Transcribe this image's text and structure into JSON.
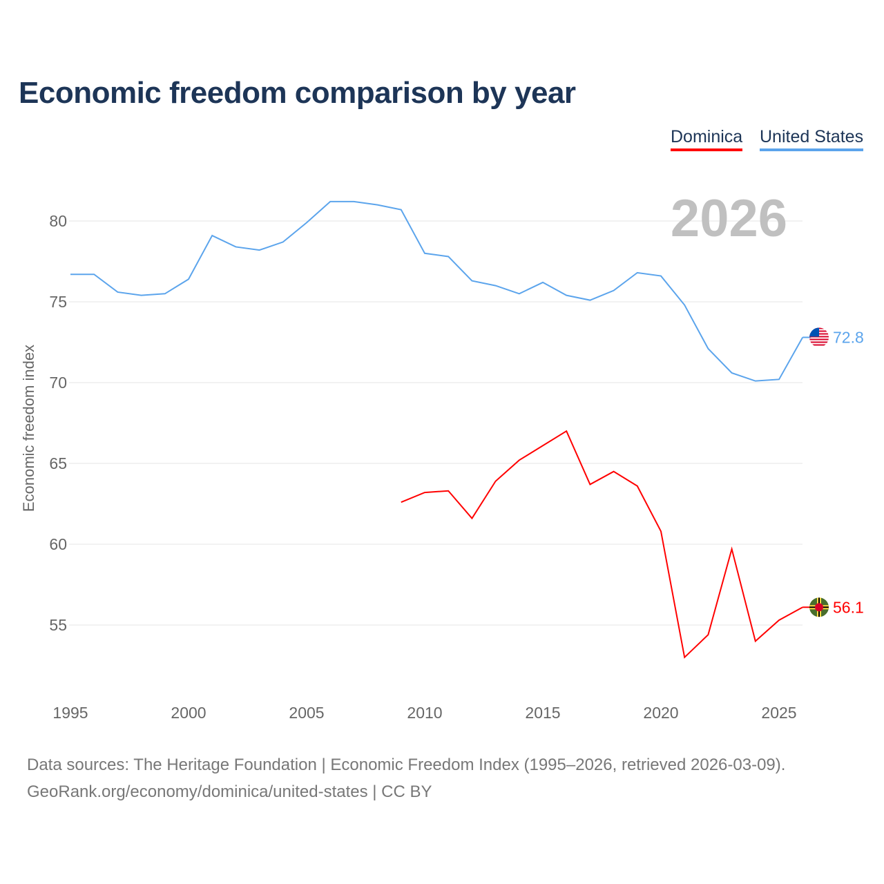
{
  "title": "Economic freedom comparison by year",
  "legend": [
    {
      "label": "Dominica",
      "color": "#ff0000"
    },
    {
      "label": "United States",
      "color": "#5ba4ec"
    }
  ],
  "source_line1": "Data sources: The Heritage Foundation | Economic Freedom Index (1995–2026, retrieved 2026-03-09).",
  "source_line2": "GeoRank.org/economy/dominica/united-states | CC BY",
  "chart_data": {
    "type": "line",
    "title": "Economic freedom comparison by year",
    "xlabel": "",
    "ylabel": "Economic freedom index",
    "year_label": "2026",
    "xlim": [
      1995,
      2026
    ],
    "ylim": [
      51,
      83
    ],
    "xticks": [
      1995,
      2000,
      2005,
      2010,
      2015,
      2020,
      2025
    ],
    "yticks": [
      55,
      60,
      65,
      70,
      75,
      80
    ],
    "grid": true,
    "legend_position": "top-right",
    "series": [
      {
        "name": "United States",
        "color": "#5ba4ec",
        "end_label": "72.8",
        "x": [
          1995,
          1996,
          1997,
          1998,
          1999,
          2000,
          2001,
          2002,
          2003,
          2004,
          2005,
          2006,
          2007,
          2008,
          2009,
          2010,
          2011,
          2012,
          2013,
          2014,
          2015,
          2016,
          2017,
          2018,
          2019,
          2020,
          2021,
          2022,
          2023,
          2024,
          2025,
          2026
        ],
        "values": [
          76.7,
          76.7,
          75.6,
          75.4,
          75.5,
          76.4,
          79.1,
          78.4,
          78.2,
          78.7,
          79.9,
          81.2,
          81.2,
          81.0,
          80.7,
          78.0,
          77.8,
          76.3,
          76.0,
          75.5,
          76.2,
          75.4,
          75.1,
          75.7,
          76.8,
          76.6,
          74.8,
          72.1,
          70.6,
          70.1,
          70.2,
          72.8
        ]
      },
      {
        "name": "Dominica",
        "color": "#ff0000",
        "end_label": "56.1",
        "x": [
          2009,
          2010,
          2011,
          2012,
          2013,
          2014,
          2015,
          2016,
          2017,
          2018,
          2019,
          2020,
          2021,
          2022,
          2023,
          2024,
          2025,
          2026
        ],
        "values": [
          62.6,
          63.2,
          63.3,
          61.6,
          63.9,
          65.2,
          66.1,
          67.0,
          63.7,
          64.5,
          63.6,
          60.8,
          53.0,
          54.4,
          59.7,
          54.0,
          55.3,
          56.1
        ]
      }
    ]
  }
}
